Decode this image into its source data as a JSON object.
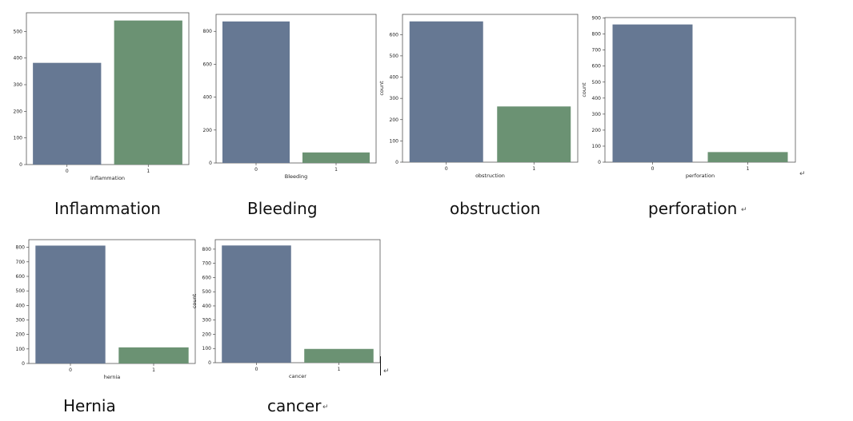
{
  "colors": {
    "bar0": "#667893",
    "bar1": "#6b9273",
    "frame": "#555555"
  },
  "charts": [
    {
      "caption": "Inflammation",
      "chart_data": {
        "type": "bar",
        "categories": [
          "0",
          "1"
        ],
        "values": [
          382,
          541
        ],
        "xlabel": "inflammation",
        "ylabel": "",
        "ylim": [
          0,
          570
        ],
        "yticks": [
          0,
          100,
          200,
          300,
          400,
          500
        ]
      }
    },
    {
      "caption": "Bleeding",
      "chart_data": {
        "type": "bar",
        "categories": [
          "0",
          "1"
        ],
        "values": [
          860,
          64
        ],
        "xlabel": "Bleeding",
        "ylabel": "",
        "ylim": [
          0,
          903
        ],
        "yticks": [
          0,
          200,
          400,
          600,
          800
        ]
      }
    },
    {
      "caption": "obstruction",
      "chart_data": {
        "type": "bar",
        "categories": [
          "0",
          "1"
        ],
        "values": [
          662,
          262
        ],
        "xlabel": "obstruction",
        "ylabel": "count",
        "ylim": [
          0,
          695
        ],
        "yticks": [
          0,
          100,
          200,
          300,
          400,
          500,
          600
        ]
      }
    },
    {
      "caption": "perforation",
      "chart_data": {
        "type": "bar",
        "categories": [
          "0",
          "1"
        ],
        "values": [
          860,
          63
        ],
        "xlabel": "perforation",
        "ylabel": "count",
        "ylim": [
          0,
          903
        ],
        "yticks": [
          0,
          100,
          200,
          300,
          400,
          500,
          600,
          700,
          800,
          900
        ]
      }
    },
    {
      "caption": "Hernia",
      "chart_data": {
        "type": "bar",
        "categories": [
          "0",
          "1"
        ],
        "values": [
          812,
          111
        ],
        "xlabel": "hernia",
        "ylabel": "",
        "ylim": [
          0,
          853
        ],
        "yticks": [
          0,
          100,
          200,
          300,
          400,
          500,
          600,
          700,
          800
        ]
      }
    },
    {
      "caption": "cancer",
      "chart_data": {
        "type": "bar",
        "categories": [
          "0",
          "1"
        ],
        "values": [
          826,
          97
        ],
        "xlabel": "cancer",
        "ylabel": "count",
        "ylim": [
          0,
          867
        ],
        "yticks": [
          0,
          100,
          200,
          300,
          400,
          500,
          600,
          700,
          800
        ]
      }
    }
  ],
  "return_mark": "↵"
}
